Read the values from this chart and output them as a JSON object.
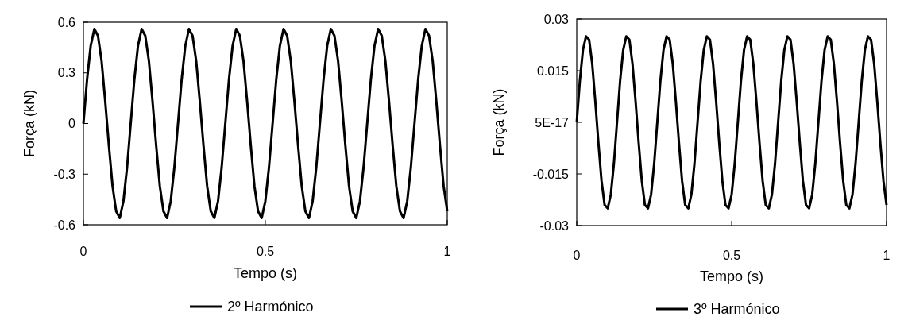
{
  "chart_data": [
    {
      "type": "line",
      "xlabel": "Tempo (s)",
      "ylabel": "Força (kN)",
      "xlim": [
        0,
        1
      ],
      "xticks": [
        0,
        0.5,
        1
      ],
      "ylim": [
        -0.6,
        0.6
      ],
      "yticks": [
        -0.6,
        -0.3,
        0,
        0.3,
        0.6
      ],
      "grid": false,
      "legend": "bottom",
      "marker": "none",
      "line_style": "solid",
      "x": [
        0,
        0.01,
        0.02,
        0.03,
        0.04,
        0.05,
        0.06,
        0.07,
        0.08,
        0.09,
        0.1,
        0.11,
        0.12,
        0.13,
        0.14,
        0.15,
        0.16,
        0.17,
        0.18,
        0.19,
        0.2,
        0.21,
        0.22,
        0.23,
        0.24,
        0.25,
        0.26,
        0.27,
        0.28,
        0.29,
        0.3,
        0.31,
        0.32,
        0.33,
        0.34,
        0.35,
        0.36,
        0.37,
        0.38,
        0.39,
        0.4,
        0.41,
        0.42,
        0.43,
        0.44,
        0.45,
        0.46,
        0.47,
        0.48,
        0.49,
        0.5,
        0.51,
        0.52,
        0.53,
        0.54,
        0.55,
        0.56,
        0.57,
        0.58,
        0.59,
        0.6,
        0.61,
        0.62,
        0.63,
        0.64,
        0.65,
        0.66,
        0.67,
        0.68,
        0.69,
        0.7,
        0.71,
        0.72,
        0.73,
        0.74,
        0.75,
        0.76,
        0.77,
        0.78,
        0.79,
        0.8,
        0.81,
        0.82,
        0.83,
        0.84,
        0.85,
        0.86,
        0.87,
        0.88,
        0.89,
        0.9,
        0.91,
        0.92,
        0.93,
        0.94,
        0.95,
        0.96,
        0.97,
        0.98,
        0.99,
        1
      ],
      "series": [
        {
          "name": "2º Harmónico",
          "color": "#000000",
          "values": [
            0,
            0.26,
            0.46,
            0.56,
            0.52,
            0.37,
            0.13,
            -0.13,
            -0.37,
            -0.52,
            -0.56,
            -0.46,
            -0.26,
            0,
            0.26,
            0.46,
            0.56,
            0.52,
            0.37,
            0.13,
            -0.13,
            -0.37,
            -0.52,
            -0.56,
            -0.46,
            -0.26,
            0,
            0.26,
            0.46,
            0.56,
            0.52,
            0.37,
            0.13,
            -0.13,
            -0.37,
            -0.52,
            -0.56,
            -0.46,
            -0.26,
            0,
            0.26,
            0.46,
            0.56,
            0.52,
            0.37,
            0.13,
            -0.13,
            -0.37,
            -0.52,
            -0.56,
            -0.46,
            -0.26,
            0,
            0.26,
            0.46,
            0.56,
            0.52,
            0.37,
            0.13,
            -0.13,
            -0.37,
            -0.52,
            -0.56,
            -0.46,
            -0.26,
            0,
            0.26,
            0.46,
            0.56,
            0.52,
            0.37,
            0.13,
            -0.13,
            -0.37,
            -0.52,
            -0.56,
            -0.46,
            -0.26,
            0,
            0.26,
            0.46,
            0.56,
            0.52,
            0.37,
            0.13,
            -0.13,
            -0.37,
            -0.52,
            -0.56,
            -0.46,
            -0.26,
            0,
            0.26,
            0.46,
            0.56,
            0.52,
            0.37,
            0.13,
            -0.13,
            -0.37,
            -0.52
          ]
        }
      ]
    },
    {
      "type": "line",
      "xlabel": "Tempo (s)",
      "ylabel": "Força (kN)",
      "xlim": [
        0,
        1
      ],
      "xticks": [
        0,
        0.5,
        1
      ],
      "ylim": [
        -0.03,
        0.03
      ],
      "yticks": [
        -0.03,
        -0.015,
        {
          "value": 0,
          "label": "5E-17"
        },
        0.015,
        0.03
      ],
      "grid": false,
      "legend": "bottom",
      "marker": "none",
      "line_style": "solid",
      "x": [
        0,
        0.01,
        0.02,
        0.03,
        0.04,
        0.05,
        0.06,
        0.07,
        0.08,
        0.09,
        0.1,
        0.11,
        0.12,
        0.13,
        0.14,
        0.15,
        0.16,
        0.17,
        0.18,
        0.19,
        0.2,
        0.21,
        0.22,
        0.23,
        0.24,
        0.25,
        0.26,
        0.27,
        0.28,
        0.29,
        0.3,
        0.31,
        0.32,
        0.33,
        0.34,
        0.35,
        0.36,
        0.37,
        0.38,
        0.39,
        0.4,
        0.41,
        0.42,
        0.43,
        0.44,
        0.45,
        0.46,
        0.47,
        0.48,
        0.49,
        0.5,
        0.51,
        0.52,
        0.53,
        0.54,
        0.55,
        0.56,
        0.57,
        0.58,
        0.59,
        0.6,
        0.61,
        0.62,
        0.63,
        0.64,
        0.65,
        0.66,
        0.67,
        0.68,
        0.69,
        0.7,
        0.71,
        0.72,
        0.73,
        0.74,
        0.75,
        0.76,
        0.77,
        0.78,
        0.79,
        0.8,
        0.81,
        0.82,
        0.83,
        0.84,
        0.85,
        0.86,
        0.87,
        0.88,
        0.89,
        0.9,
        0.91,
        0.92,
        0.93,
        0.94,
        0.95,
        0.96,
        0.97,
        0.98,
        0.99,
        1
      ],
      "series": [
        {
          "name": "3º Harmónico",
          "color": "#000000",
          "values": [
            0,
            0.012,
            0.021,
            0.025,
            0.024,
            0.017,
            0.006,
            -0.006,
            -0.017,
            -0.024,
            -0.025,
            -0.021,
            -0.012,
            0,
            0.012,
            0.021,
            0.025,
            0.024,
            0.017,
            0.006,
            -0.006,
            -0.017,
            -0.024,
            -0.025,
            -0.021,
            -0.012,
            0,
            0.012,
            0.021,
            0.025,
            0.024,
            0.017,
            0.006,
            -0.006,
            -0.017,
            -0.024,
            -0.025,
            -0.021,
            -0.012,
            0,
            0.012,
            0.021,
            0.025,
            0.024,
            0.017,
            0.006,
            -0.006,
            -0.017,
            -0.024,
            -0.025,
            -0.021,
            -0.012,
            0,
            0.012,
            0.021,
            0.025,
            0.024,
            0.017,
            0.006,
            -0.006,
            -0.017,
            -0.024,
            -0.025,
            -0.021,
            -0.012,
            0,
            0.012,
            0.021,
            0.025,
            0.024,
            0.017,
            0.006,
            -0.006,
            -0.017,
            -0.024,
            -0.025,
            -0.021,
            -0.012,
            0,
            0.012,
            0.021,
            0.025,
            0.024,
            0.017,
            0.006,
            -0.006,
            -0.017,
            -0.024,
            -0.025,
            -0.021,
            -0.012,
            0,
            0.012,
            0.021,
            0.025,
            0.024,
            0.017,
            0.006,
            -0.006,
            -0.017,
            -0.024
          ]
        }
      ]
    }
  ]
}
